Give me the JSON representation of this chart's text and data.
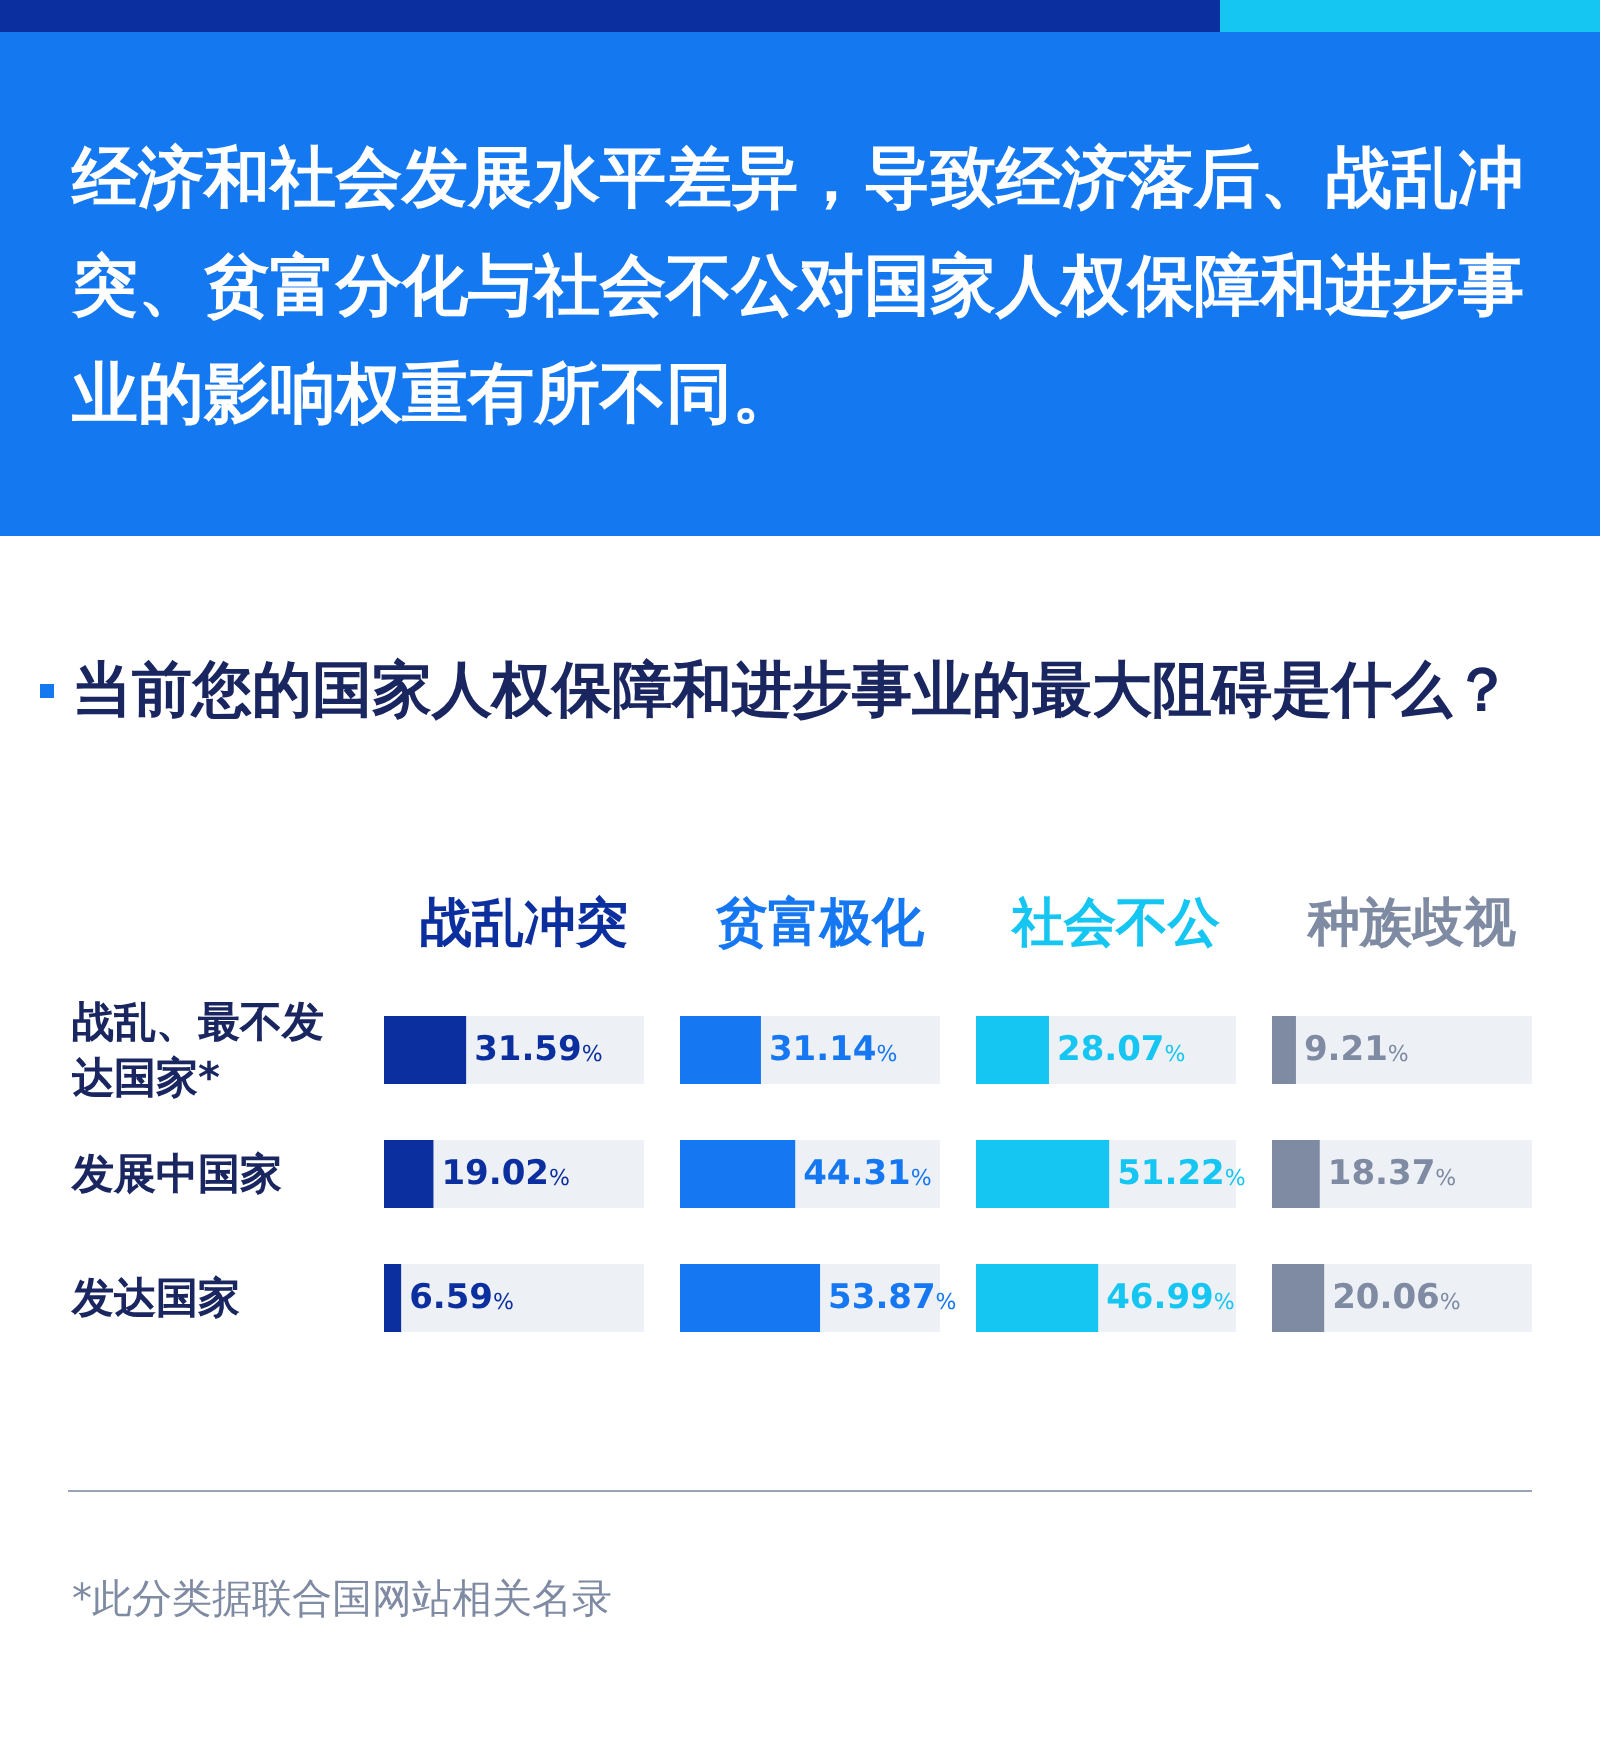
{
  "chart_data": [
    {
      "type": "other",
      "title": "经济和社会发展水平差异，导致经济落后、战乱冲突、贫富分化与社会不公对国家人权保障和进步事业的影响权重有所不同。",
      "subtitle": "当前您的国家人权保障和进步事业的最大阻碍是什么？",
      "annotations": [
        "*此分类据联合国网站相关名录"
      ]
    },
    {
      "type": "bar",
      "orientation": "horizontal",
      "title": "战乱冲突",
      "categories": [
        "战乱、最不发达国家*",
        "发展中国家",
        "发达国家"
      ],
      "color": "#0b2f9f",
      "values": [
        31.59,
        19.02,
        6.59
      ],
      "value_labels": [
        "31.59%",
        "19.02%",
        "6.59%"
      ],
      "xlim": [
        0,
        100
      ],
      "tick_labels": "y"
    },
    {
      "type": "bar",
      "orientation": "horizontal",
      "title": "贫富极化",
      "categories": [
        "战乱、最不发达国家*",
        "发展中国家",
        "发达国家"
      ],
      "color": "#1677f2",
      "values": [
        31.14,
        44.31,
        53.87
      ],
      "value_labels": [
        "31.14%",
        "44.31%",
        "53.87%"
      ],
      "xlim": [
        0,
        100
      ],
      "tick_labels": false
    },
    {
      "type": "bar",
      "orientation": "horizontal",
      "title": "社会不公",
      "categories": [
        "战乱、最不发达国家*",
        "发展中国家",
        "发达国家"
      ],
      "color": "#16c6f2",
      "values": [
        28.07,
        51.22,
        46.99
      ],
      "value_labels": [
        "28.07%",
        "51.22%",
        "46.99%"
      ],
      "xlim": [
        0,
        100
      ],
      "tick_labels": false
    },
    {
      "type": "bar",
      "orientation": "horizontal",
      "title": "种族歧视",
      "categories": [
        "战乱、最不发达国家*",
        "发展中国家",
        "发达国家"
      ],
      "color": "#7f8aa3",
      "values": [
        9.21,
        18.37,
        20.06
      ],
      "value_labels": [
        "9.21%",
        "18.37%",
        "20.06%"
      ],
      "xlim": [
        0,
        100
      ],
      "tick_labels": false
    }
  ]
}
